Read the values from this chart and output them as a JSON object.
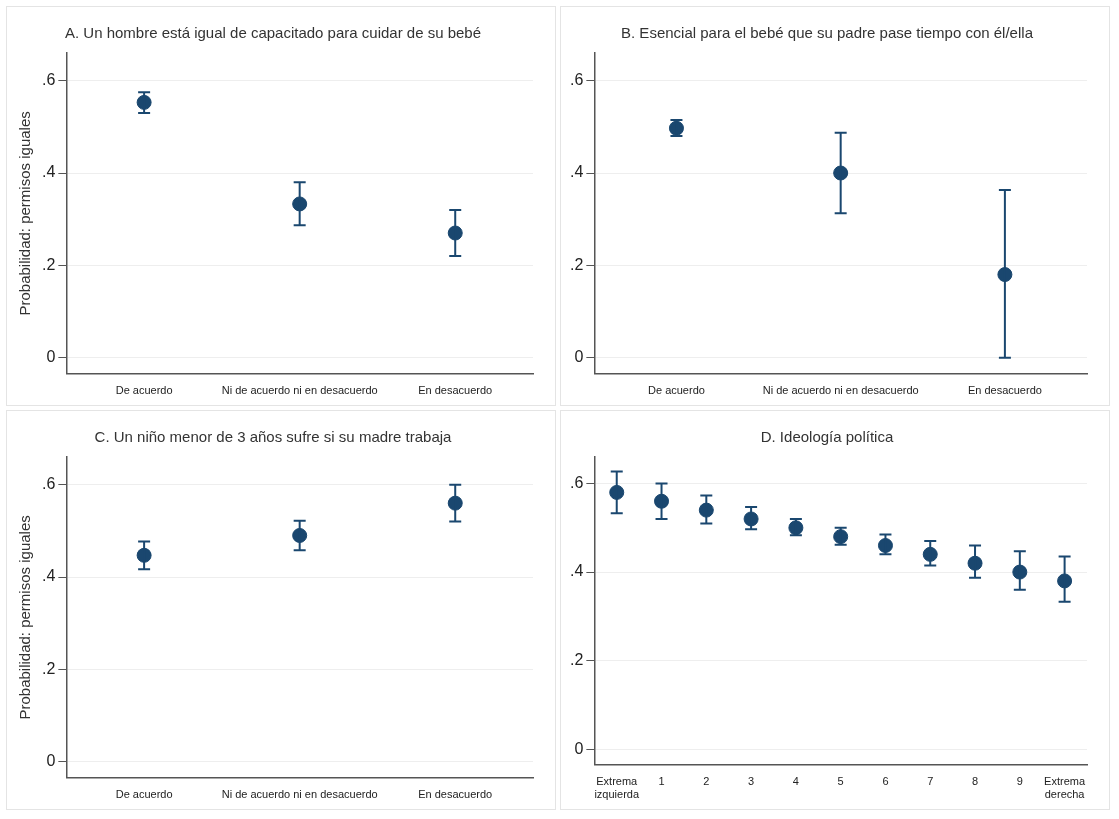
{
  "chart_data": [
    {
      "type": "scatter",
      "title": "A. Un hombre está igual de capacitado para cuidar de su bebé",
      "ylabel": "Probabilidad: permisos iguales",
      "categories": [
        "De acuerdo",
        "Ni de acuerdo ni en desacuerdo",
        "En desacuerdo"
      ],
      "values": [
        0.553,
        0.333,
        0.27
      ],
      "errors": [
        [
          0.53,
          0.575
        ],
        [
          0.287,
          0.38
        ],
        [
          0.22,
          0.32
        ]
      ],
      "color": "#1a476f",
      "ylim": [
        -0.035,
        0.66
      ],
      "yticks": [
        {
          "value": 0,
          "label": "0"
        },
        {
          "value": 0.2,
          "label": ".2"
        },
        {
          "value": 0.4,
          "label": ".4"
        },
        {
          "value": 0.6,
          "label": ".6"
        }
      ],
      "grid": "y",
      "marker": "circle",
      "legend": false
    },
    {
      "type": "scatter",
      "title": "B. Esencial para el bebé que su padre pase tiempo con él/ella",
      "categories": [
        "De acuerdo",
        "Ni de acuerdo ni en desacuerdo",
        "En desacuerdo"
      ],
      "values": [
        0.497,
        0.4,
        0.18
      ],
      "errors": [
        [
          0.48,
          0.515
        ],
        [
          0.313,
          0.487
        ],
        [
          0,
          0.363
        ]
      ],
      "color": "#1a476f",
      "ylim": [
        -0.035,
        0.66
      ],
      "yticks": [
        {
          "value": 0,
          "label": "0"
        },
        {
          "value": 0.2,
          "label": ".2"
        },
        {
          "value": 0.4,
          "label": ".4"
        },
        {
          "value": 0.6,
          "label": ".6"
        }
      ],
      "grid": "y",
      "marker": "circle",
      "legend": false
    },
    {
      "type": "scatter",
      "title": "C. Un niño menor de 3 años sufre si su madre trabaja",
      "ylabel": "Probabilidad: permisos iguales",
      "categories": [
        "De acuerdo",
        "Ni de acuerdo ni en desacuerdo",
        "En desacuerdo"
      ],
      "values": [
        0.447,
        0.49,
        0.56
      ],
      "errors": [
        [
          0.417,
          0.477
        ],
        [
          0.458,
          0.522
        ],
        [
          0.52,
          0.6
        ]
      ],
      "color": "#1a476f",
      "ylim": [
        -0.035,
        0.66
      ],
      "yticks": [
        {
          "value": 0,
          "label": "0"
        },
        {
          "value": 0.2,
          "label": ".2"
        },
        {
          "value": 0.4,
          "label": ".4"
        },
        {
          "value": 0.6,
          "label": ".6"
        }
      ],
      "grid": "y",
      "marker": "circle",
      "legend": false
    },
    {
      "type": "scatter",
      "title": "D. Ideología política",
      "categories": [
        "Extrema izquierda",
        "1",
        "2",
        "3",
        "4",
        "5",
        "6",
        "7",
        "8",
        "9",
        "Extrema derecha"
      ],
      "values": [
        0.58,
        0.56,
        0.54,
        0.52,
        0.5,
        0.48,
        0.46,
        0.44,
        0.42,
        0.4,
        0.38
      ],
      "errors": [
        [
          0.533,
          0.627
        ],
        [
          0.52,
          0.6
        ],
        [
          0.51,
          0.573
        ],
        [
          0.497,
          0.547
        ],
        [
          0.483,
          0.52
        ],
        [
          0.462,
          0.5
        ],
        [
          0.44,
          0.485
        ],
        [
          0.415,
          0.47
        ],
        [
          0.387,
          0.46
        ],
        [
          0.36,
          0.447
        ],
        [
          0.333,
          0.435
        ]
      ],
      "color": "#1a476f",
      "ylim": [
        -0.035,
        0.66
      ],
      "yticks": [
        {
          "value": 0,
          "label": "0"
        },
        {
          "value": 0.2,
          "label": ".2"
        },
        {
          "value": 0.4,
          "label": ".4"
        },
        {
          "value": 0.6,
          "label": ".6"
        }
      ],
      "grid": "y",
      "marker": "circle",
      "legend": false
    }
  ]
}
